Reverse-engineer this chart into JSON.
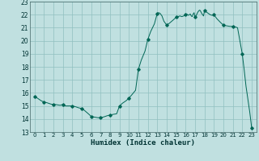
{
  "title": "",
  "xlabel": "Humidex (Indice chaleur)",
  "bg_color": "#c0e0e0",
  "grid_color": "#90c0c0",
  "line_color": "#006655",
  "marker_color": "#006655",
  "xlim": [
    -0.5,
    23.5
  ],
  "ylim": [
    13,
    23
  ],
  "yticks": [
    13,
    14,
    15,
    16,
    17,
    18,
    19,
    20,
    21,
    22,
    23
  ],
  "xticks": [
    0,
    1,
    2,
    3,
    4,
    5,
    6,
    7,
    8,
    9,
    10,
    11,
    12,
    13,
    14,
    15,
    16,
    17,
    18,
    19,
    20,
    21,
    22,
    23
  ],
  "x_detail": [
    0,
    0.3,
    0.7,
    1,
    1.3,
    1.7,
    2,
    2.3,
    2.7,
    3,
    3.3,
    3.7,
    4,
    4.3,
    4.7,
    5,
    5.3,
    5.7,
    6,
    6.3,
    6.7,
    7,
    7.3,
    7.7,
    8,
    8.3,
    8.7,
    9,
    9.3,
    9.7,
    10,
    10.3,
    10.7,
    11,
    11.3,
    11.7,
    12,
    12.3,
    12.7,
    13,
    13.15,
    13.3,
    13.5,
    13.7,
    14,
    14.3,
    14.7,
    15,
    15.2,
    15.4,
    15.6,
    15.8,
    16,
    16.1,
    16.2,
    16.3,
    16.4,
    16.5,
    16.6,
    16.7,
    16.8,
    16.9,
    17,
    17.1,
    17.2,
    17.3,
    17.4,
    17.5,
    17.6,
    17.7,
    17.8,
    17.9,
    18,
    18.2,
    18.4,
    18.6,
    18.8,
    19,
    19.3,
    19.7,
    20,
    20.3,
    20.7,
    21,
    21.3,
    21.5,
    22,
    22.2,
    22.4,
    22.6,
    22.8,
    23
  ],
  "y_detail": [
    15.7,
    15.6,
    15.4,
    15.3,
    15.25,
    15.15,
    15.1,
    15.1,
    15.05,
    15.1,
    15.0,
    15.0,
    15.0,
    14.95,
    14.85,
    14.8,
    14.65,
    14.4,
    14.2,
    14.15,
    14.1,
    14.1,
    14.15,
    14.25,
    14.3,
    14.35,
    14.4,
    15.0,
    15.2,
    15.4,
    15.6,
    15.85,
    16.2,
    17.8,
    18.5,
    19.2,
    20.1,
    20.7,
    21.3,
    22.1,
    22.15,
    22.1,
    21.9,
    21.5,
    21.2,
    21.35,
    21.6,
    21.8,
    21.85,
    21.9,
    21.85,
    21.9,
    22.0,
    22.05,
    22.0,
    21.95,
    22.0,
    22.05,
    21.9,
    21.85,
    22.05,
    22.15,
    21.8,
    21.9,
    22.05,
    22.2,
    22.3,
    22.35,
    22.25,
    22.1,
    22.0,
    21.9,
    22.3,
    22.2,
    22.1,
    22.0,
    21.95,
    22.0,
    21.7,
    21.4,
    21.2,
    21.15,
    21.1,
    21.1,
    21.05,
    21.0,
    19.0,
    17.8,
    16.5,
    15.5,
    14.5,
    13.3
  ],
  "marker_x": [
    0,
    1,
    2,
    3,
    4,
    5,
    6,
    7,
    8,
    9,
    10,
    11,
    12,
    13,
    14,
    15,
    16,
    17,
    18,
    19,
    20,
    21,
    22,
    23
  ],
  "marker_y": [
    15.7,
    15.3,
    15.1,
    15.1,
    15.0,
    14.8,
    14.2,
    14.1,
    14.3,
    15.0,
    15.6,
    17.8,
    20.1,
    22.1,
    21.2,
    21.8,
    22.0,
    21.8,
    22.3,
    22.0,
    21.2,
    21.1,
    19.0,
    13.3
  ]
}
